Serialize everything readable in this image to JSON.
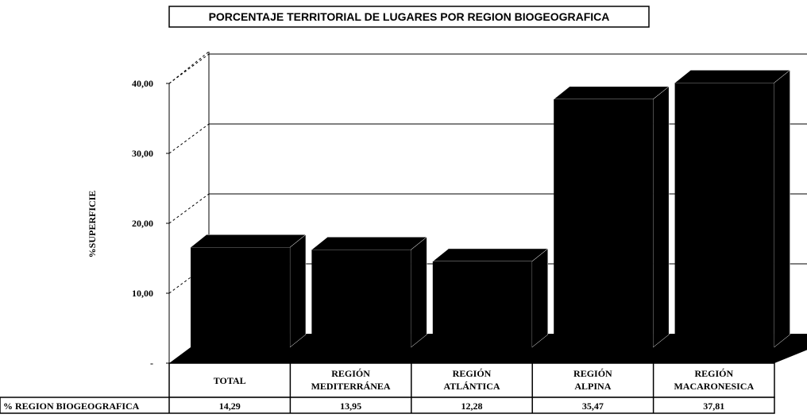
{
  "chart_data": {
    "type": "bar3d",
    "title": "PORCENTAJE TERRITORIAL DE LUGARES POR REGION BIOGEOGRAFICA",
    "y_label": "%SUPERFICIE",
    "categories": [
      [
        "TOTAL"
      ],
      [
        "REGIÓN",
        "MEDITERRÁNEA"
      ],
      [
        "REGIÓN",
        "ATLÁNTICA"
      ],
      [
        "REGIÓN",
        "ALPINA"
      ],
      [
        "REGIÓN",
        "MACARONESICA"
      ]
    ],
    "series": [
      {
        "name": "% REGION BIOGEOGRAFICA",
        "color": "#000000",
        "values": [
          14.29,
          13.95,
          12.28,
          35.47,
          37.81
        ],
        "value_labels": [
          "14,29",
          "13,95",
          "12,28",
          "35,47",
          "37,81"
        ]
      }
    ],
    "ylim": [
      0,
      40
    ],
    "yticks": [
      {
        "value": 0,
        "label": "-"
      },
      {
        "value": 10,
        "label": "10,00"
      },
      {
        "value": 20,
        "label": "20,00"
      },
      {
        "value": 30,
        "label": "30,00"
      },
      {
        "value": 40,
        "label": "40,00"
      }
    ],
    "grid": true
  }
}
